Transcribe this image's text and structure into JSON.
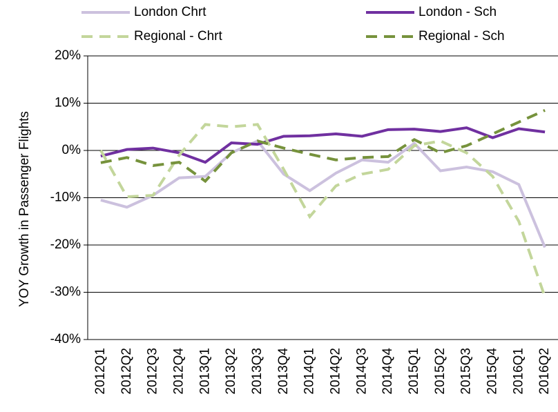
{
  "chart_data": {
    "type": "line",
    "ylabel": "YOY Growth in Passenger Flights",
    "categories": [
      "2012Q1",
      "2012Q2",
      "2012Q3",
      "2012Q4",
      "2013Q1",
      "2013Q2",
      "2013Q3",
      "2013Q4",
      "2014Q1",
      "2014Q2",
      "2014Q3",
      "2014Q4",
      "2015Q1",
      "2015Q2",
      "2015Q3",
      "2015Q4",
      "2016Q1",
      "2016Q2"
    ],
    "series": [
      {
        "name": "London Chrt",
        "color": "#ccc1de",
        "dashed": false,
        "values": [
          -10.5,
          -12,
          -9.5,
          -5.8,
          -5.5,
          -0.5,
          2,
          -5,
          -8.5,
          -4.8,
          -2,
          -2.5,
          1.5,
          -4.3,
          -3.5,
          -4.5,
          -7.2,
          -20.5
        ]
      },
      {
        "name": "London - Sch",
        "color": "#7030a0",
        "dashed": false,
        "values": [
          -1.2,
          0.2,
          0.5,
          -0.5,
          -2.5,
          1.6,
          1.3,
          3,
          3.1,
          3.5,
          3,
          4.4,
          4.5,
          4,
          4.8,
          2.7,
          4.6,
          3.9
        ]
      },
      {
        "name": "Regional - Chrt",
        "color": "#c3d69b",
        "dashed": true,
        "values": [
          0,
          -9.8,
          -9.5,
          -1,
          5.5,
          5,
          5.5,
          -4,
          -14,
          -7.5,
          -5,
          -4,
          1,
          2,
          -0.5,
          -5.5,
          -15,
          -31
        ]
      },
      {
        "name": "Regional - Sch",
        "color": "#76923c",
        "dashed": true,
        "values": [
          -2.6,
          -1.5,
          -3.2,
          -2.5,
          -6.5,
          -0.5,
          2,
          0.5,
          -0.8,
          -2,
          -1.5,
          -1.3,
          2.3,
          -0.5,
          1,
          3.5,
          6,
          8.5
        ]
      }
    ],
    "ylim": [
      -40,
      20
    ],
    "yticks": [
      {
        "value": -40,
        "label": "-40%"
      },
      {
        "value": -30,
        "label": "-30%"
      },
      {
        "value": -20,
        "label": "-20%"
      },
      {
        "value": -10,
        "label": "-10%"
      },
      {
        "value": 0,
        "label": "0%"
      },
      {
        "value": 10,
        "label": "10%"
      },
      {
        "value": 20,
        "label": "20%"
      }
    ],
    "grid": true,
    "legend": "top"
  }
}
